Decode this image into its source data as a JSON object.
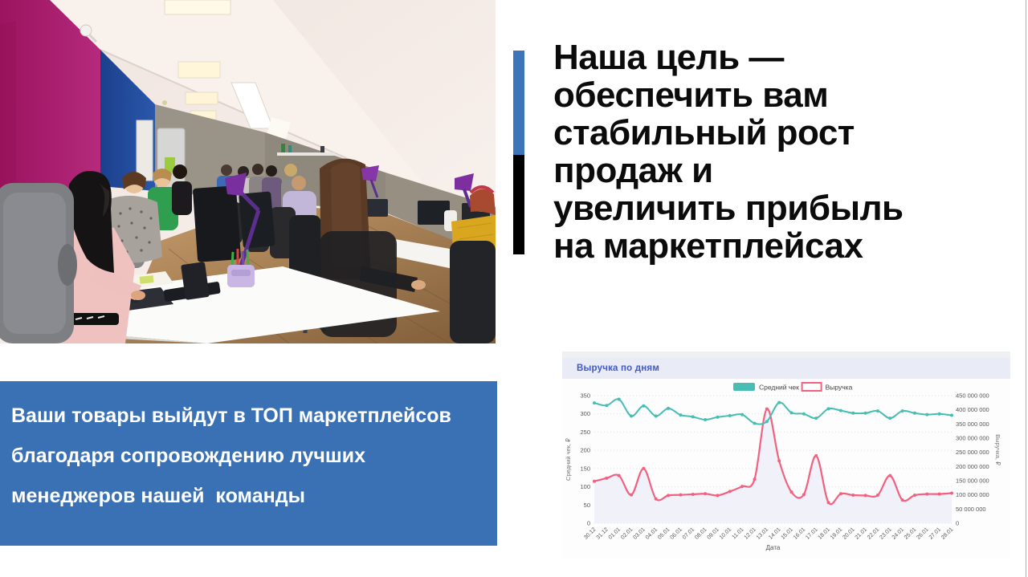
{
  "photo": {
    "description": "Women working at computers in a bright attic office with magenta and blue walls, slanted white ceiling with light panels, white desks, purple desk lamps and wooden floor",
    "colors": {
      "magenta_wall": "#a81e6e",
      "blue_wall": "#2252a6",
      "ceiling": "#f3eae4",
      "floor": "#b4885a"
    }
  },
  "headline": {
    "lines": [
      "Наша цель —",
      "обеспечить вам",
      "стабильный рост",
      "продаж и",
      "увеличить прибыль",
      "на маркетплейсах"
    ],
    "accent_blue": "#3e74b9",
    "accent_black": "#000000",
    "text_color": "#0b0b0b"
  },
  "banner": {
    "lines": [
      "Ваши товары выйдут в ТОП маркетплейсов",
      "благодаря сопровождению лучших",
      "менеджеров нашей  команды"
    ],
    "background": "#3a70b4",
    "text_color": "#ffffff"
  },
  "chart": {
    "title": "Выручка по дням",
    "title_color": "#4059c9",
    "header_background": "#e9ebf7"
  },
  "chart_data": {
    "type": "line",
    "title": "Выручка по дням",
    "xlabel": "Дата",
    "legend_position": "top-center",
    "grid": "horizontal-dotted",
    "x": [
      "30.12",
      "31.12",
      "01.01",
      "02.01",
      "03.01",
      "04.01",
      "05.01",
      "06.01",
      "07.01",
      "08.01",
      "09.01",
      "10.01",
      "11.01",
      "12.01",
      "13.01",
      "14.01",
      "15.01",
      "16.01",
      "17.01",
      "18.01",
      "19.01",
      "20.01",
      "21.01",
      "22.01",
      "23.01",
      "24.01",
      "25.01",
      "26.01",
      "27.01",
      "28.01"
    ],
    "series": [
      {
        "name": "Средний чек",
        "axis": "left",
        "color": "#47bdb3",
        "values": [
          330,
          323,
          340,
          294,
          322,
          294,
          315,
          297,
          292,
          284,
          291,
          295,
          298,
          274,
          279,
          331,
          303,
          300,
          288,
          314,
          309,
          302,
          302,
          308,
          288,
          308,
          302,
          298,
          300,
          296
        ]
      },
      {
        "name": "Выручка",
        "axis": "right",
        "color": "#f2617f",
        "area_fill": "#eef0f8",
        "values": [
          148000000,
          159000000,
          168000000,
          100000000,
          193000000,
          86000000,
          98000000,
          100000000,
          102000000,
          104000000,
          98000000,
          112000000,
          130000000,
          155000000,
          403000000,
          220000000,
          110000000,
          101000000,
          238000000,
          73000000,
          104000000,
          99000000,
          98000000,
          99000000,
          168000000,
          82000000,
          99000000,
          103000000,
          103000000,
          106000000
        ]
      }
    ],
    "left_axis": {
      "title": "Средний чек, ₽",
      "range": [
        0,
        350
      ],
      "ticks": [
        0,
        50,
        100,
        150,
        200,
        250,
        300,
        350
      ]
    },
    "right_axis": {
      "title": "Выручка, ₽",
      "range": [
        0,
        450000000
      ],
      "ticks": [
        "0",
        "50 000 000",
        "100 000 000",
        "150 000 000",
        "200 000 000",
        "250 000 000",
        "300 000 000",
        "350 000 000",
        "400 000 000",
        "450 000 000"
      ]
    }
  }
}
